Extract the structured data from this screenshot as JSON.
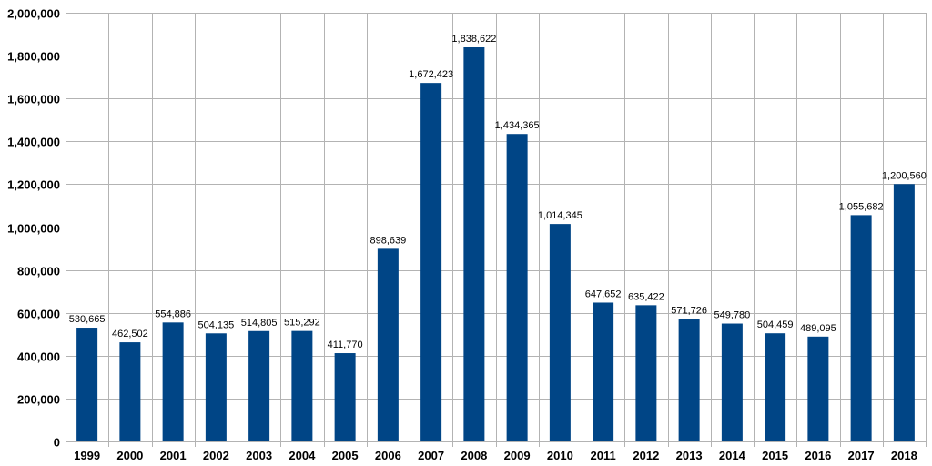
{
  "chart_data": {
    "type": "bar",
    "title": "",
    "xlabel": "",
    "ylabel": "",
    "categories": [
      "1999",
      "2000",
      "2001",
      "2002",
      "2003",
      "2004",
      "2005",
      "2006",
      "2007",
      "2008",
      "2009",
      "2010",
      "2011",
      "2012",
      "2013",
      "2014",
      "2015",
      "2016",
      "2017",
      "2018"
    ],
    "values": [
      530665,
      462502,
      554886,
      504135,
      514805,
      515292,
      411770,
      898639,
      1672423,
      1838622,
      1434365,
      1014345,
      647652,
      635422,
      571726,
      549780,
      504459,
      489095,
      1055682,
      1200560
    ],
    "value_labels": [
      "530,665",
      "462,502",
      "554,886",
      "504,135",
      "514,805",
      "515,292",
      "411,770",
      "898,639",
      "1,672,423",
      "1,838,622",
      "1,434,365",
      "1,014,345",
      "647,652",
      "635,422",
      "571,726",
      "549,780",
      "504,459",
      "489,095",
      "1,055,682",
      "1,200,560"
    ],
    "ylim": [
      0,
      2000000
    ],
    "y_ticks": [
      0,
      200000,
      400000,
      600000,
      800000,
      1000000,
      1200000,
      1400000,
      1600000,
      1800000,
      2000000
    ],
    "y_tick_labels": [
      "0",
      "200,000",
      "400,000",
      "600,000",
      "800,000",
      "1,000,000",
      "1,200,000",
      "1,400,000",
      "1,600,000",
      "1,800,000",
      "2,000,000"
    ],
    "grid": true,
    "legend": "none",
    "colors": {
      "bar": "#004586",
      "grid": "#b3b3b3",
      "axis": "#b3b3b3"
    }
  }
}
